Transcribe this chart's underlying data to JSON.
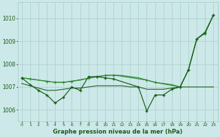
{
  "background_color": "#cce8e8",
  "grid_color": "#aacccc",
  "line_color_dark": "#1a5c1a",
  "line_color_med": "#2d8b2d",
  "xlabel": "Graphe pression niveau de la mer (hPa)",
  "ylim": [
    1005.5,
    1010.7
  ],
  "xlim": [
    -0.5,
    23.5
  ],
  "yticks": [
    1006,
    1007,
    1008,
    1009,
    1010
  ],
  "xticks": [
    0,
    1,
    2,
    3,
    4,
    5,
    6,
    7,
    8,
    9,
    10,
    11,
    12,
    13,
    14,
    15,
    16,
    17,
    18,
    19,
    20,
    21,
    22,
    23
  ],
  "smooth_upper_x": [
    0,
    1,
    2,
    3,
    4,
    5,
    6,
    7,
    8,
    9,
    10,
    11,
    12,
    13,
    14,
    15,
    16,
    17,
    18,
    19,
    20,
    21,
    22,
    23
  ],
  "smooth_upper_y": [
    1007.4,
    1007.35,
    1007.3,
    1007.25,
    1007.2,
    1007.2,
    1007.25,
    1007.3,
    1007.38,
    1007.45,
    1007.5,
    1007.52,
    1007.5,
    1007.45,
    1007.4,
    1007.3,
    1007.2,
    1007.15,
    1007.1,
    1007.0,
    1007.75,
    1009.1,
    1009.4,
    1010.15
  ],
  "flat_line_x": [
    0,
    1,
    2,
    3,
    4,
    5,
    6,
    7,
    8,
    9,
    10,
    11,
    12,
    13,
    14,
    15,
    16,
    17,
    18,
    19,
    20,
    21,
    22,
    23
  ],
  "flat_line_y": [
    1007.15,
    1007.05,
    1006.95,
    1006.85,
    1006.85,
    1006.9,
    1006.95,
    1006.95,
    1007.0,
    1007.05,
    1007.05,
    1007.05,
    1007.05,
    1007.0,
    1007.0,
    1006.9,
    1006.9,
    1006.9,
    1006.95,
    1007.0,
    1007.0,
    1007.0,
    1007.0,
    1007.0
  ],
  "marker_line_x": [
    0,
    1,
    2,
    3,
    4,
    5,
    6,
    7,
    8,
    9,
    10,
    11,
    14,
    15,
    16,
    17,
    18,
    19,
    20,
    21,
    22,
    23
  ],
  "marker_line_y": [
    1007.4,
    1007.1,
    1006.85,
    1006.65,
    1006.3,
    1006.55,
    1007.0,
    1006.85,
    1007.45,
    1007.45,
    1007.4,
    1007.35,
    1007.0,
    1005.95,
    1006.65,
    1006.65,
    1006.9,
    1007.0,
    1007.75,
    1009.1,
    1009.35,
    1010.15
  ],
  "upper_marker_x": [
    0,
    1,
    3,
    4,
    5,
    6,
    8,
    9,
    10,
    11,
    15,
    16,
    19,
    20,
    21,
    22,
    23
  ],
  "upper_marker_y": [
    1007.4,
    1007.35,
    1007.25,
    1007.2,
    1007.2,
    1007.25,
    1007.38,
    1007.45,
    1007.5,
    1007.52,
    1007.3,
    1007.2,
    1007.0,
    1007.75,
    1009.1,
    1009.4,
    1010.15
  ]
}
